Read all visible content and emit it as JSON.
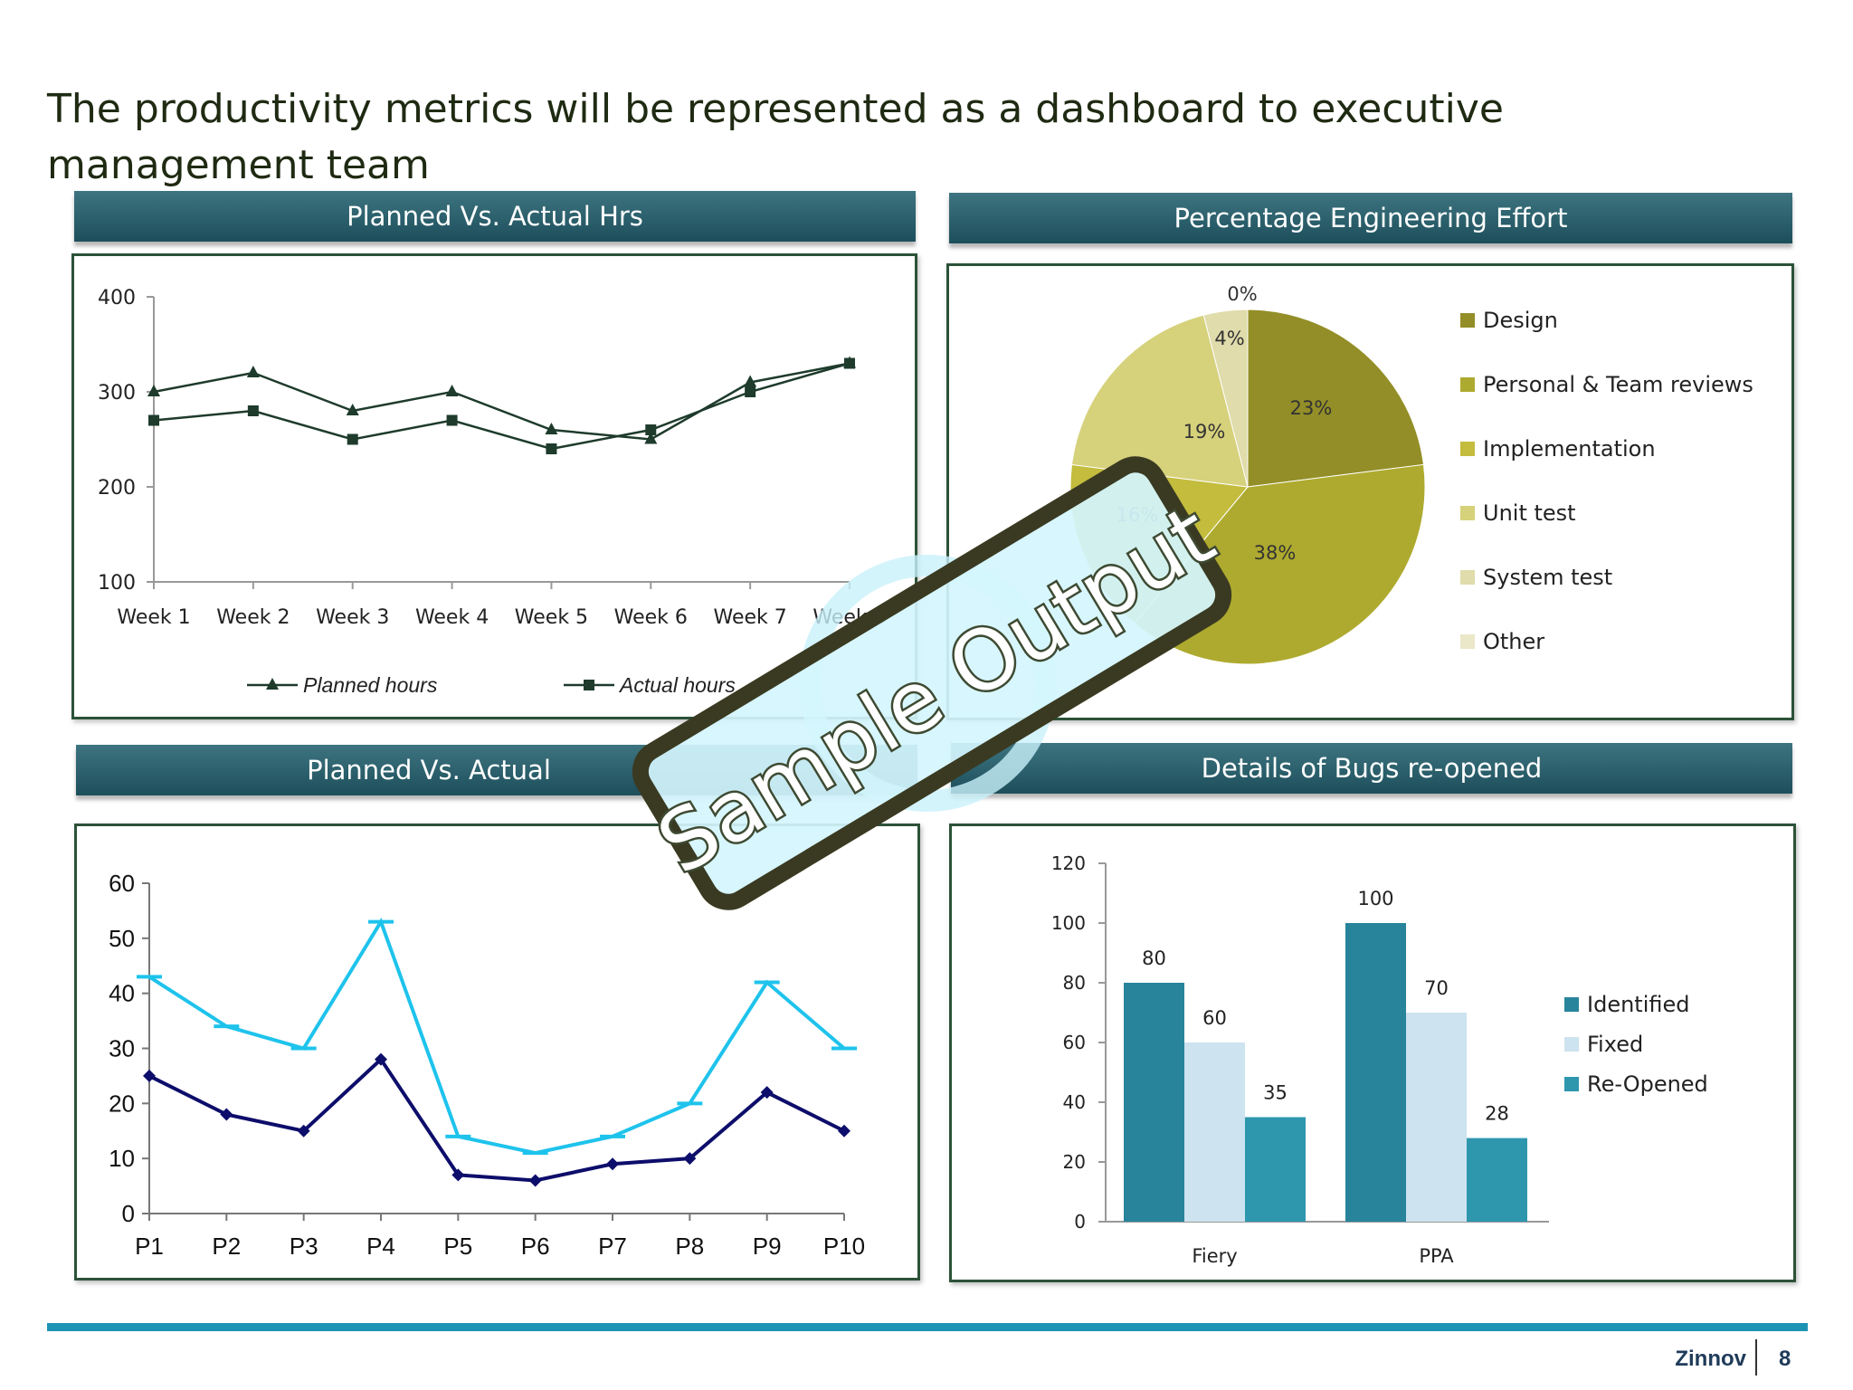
{
  "page_title": "The productivity metrics will be represented as a dashboard to executive management team",
  "panels": {
    "hours": {
      "header": "Planned Vs. Actual Hrs"
    },
    "effort": {
      "header": "Percentage Engineering Effort"
    },
    "third": {
      "header": "Planned Vs. Actual"
    },
    "bugs": {
      "header": "Details of Bugs re-opened"
    }
  },
  "watermark": {
    "text": "Sample Output"
  },
  "footer": {
    "brand": "Zinnov",
    "page_number": "8"
  },
  "colors": {
    "header_bar": "#1d4f5b",
    "panel_border": "#2c5238",
    "footer_line": "#1c93b5",
    "line_dark": "#1e3b2c",
    "line_navy": "#0d0d6b",
    "line_cyan": "#1ec3ec"
  },
  "chart_data": [
    {
      "id": "planned-vs-actual-hours",
      "type": "line",
      "categories": [
        "Week 1",
        "Week 2",
        "Week 3",
        "Week 4",
        "Week 5",
        "Week 6",
        "Week 7",
        "Week 8"
      ],
      "y_ticks": [
        "100",
        "200",
        "300",
        "400"
      ],
      "ylim": [
        100,
        400
      ],
      "legend_position": "bottom",
      "series": [
        {
          "name": "Planned hours",
          "marker": "triangle",
          "values": [
            300,
            320,
            280,
            300,
            260,
            250,
            310,
            330
          ]
        },
        {
          "name": "Actual hours",
          "marker": "square",
          "values": [
            270,
            280,
            250,
            270,
            240,
            260,
            300,
            330
          ]
        }
      ]
    },
    {
      "id": "percentage-engineering-effort",
      "type": "pie",
      "legend_position": "right",
      "slices": [
        {
          "name": "Design",
          "value": 23,
          "label": "23%",
          "color": "#938e27"
        },
        {
          "name": "Personal & Team reviews",
          "value": 38,
          "label": "38%",
          "color": "#aeaa2f"
        },
        {
          "name": "Implementation",
          "value": 16,
          "label": "16%",
          "color": "#c3bc3d"
        },
        {
          "name": "Unit test",
          "value": 19,
          "label": "19%",
          "color": "#d6d17b"
        },
        {
          "name": "System test",
          "value": 4,
          "label": "4%",
          "color": "#e0dcab"
        },
        {
          "name": "Other",
          "value": 0,
          "label": "0%",
          "color": "#ebe7c9"
        }
      ]
    },
    {
      "id": "planned-vs-actual-projects",
      "type": "line",
      "categories": [
        "P1",
        "P2",
        "P3",
        "P4",
        "P5",
        "P6",
        "P7",
        "P8",
        "P9",
        "P10"
      ],
      "y_ticks": [
        "0",
        "10",
        "20",
        "30",
        "40",
        "50",
        "60"
      ],
      "ylim": [
        0,
        60
      ],
      "series": [
        {
          "marker": "dash",
          "values": [
            43,
            34,
            30,
            53,
            14,
            11,
            14,
            20,
            42,
            30
          ]
        },
        {
          "marker": "diamond",
          "values": [
            25,
            18,
            15,
            28,
            7,
            6,
            9,
            10,
            22,
            15
          ]
        }
      ]
    },
    {
      "id": "bugs-reopened",
      "type": "bar",
      "categories": [
        "Fiery",
        "PPA"
      ],
      "y_ticks": [
        "0",
        "20",
        "40",
        "60",
        "80",
        "100",
        "120"
      ],
      "ylim": [
        0,
        120
      ],
      "legend_position": "right",
      "series": [
        {
          "name": "Identified",
          "color": "#27849a",
          "values": [
            80,
            100
          ],
          "labels": [
            "80",
            "100"
          ]
        },
        {
          "name": "Fixed",
          "color": "#cde3ef",
          "values": [
            60,
            70
          ],
          "labels": [
            "60",
            "70"
          ]
        },
        {
          "name": "Re-Opened",
          "color": "#2e97ae",
          "values": [
            35,
            28
          ],
          "labels": [
            "35",
            "28"
          ]
        }
      ]
    }
  ]
}
